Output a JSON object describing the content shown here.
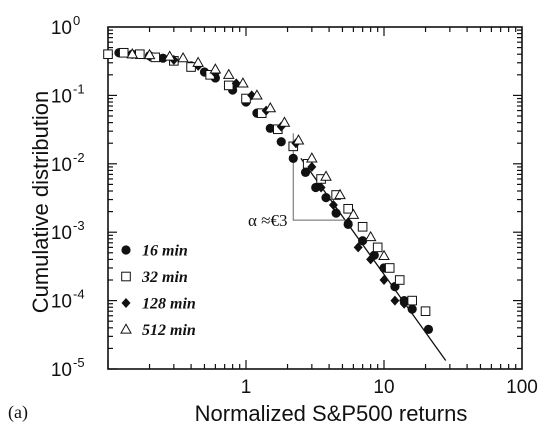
{
  "chart_data": {
    "type": "scatter",
    "xlabel": "Normalized S&P500 returns",
    "ylabel": "Cumulative distribution",
    "xscale": "log",
    "yscale": "log",
    "xlim": [
      0.1,
      100
    ],
    "ylim": [
      1e-05,
      1
    ],
    "x_ticks": [
      {
        "value": 1,
        "label": "1"
      },
      {
        "value": 10,
        "label": "10"
      },
      {
        "value": 100,
        "label": "100"
      }
    ],
    "y_ticks": [
      {
        "value": 1,
        "base": "10",
        "exp": "0"
      },
      {
        "value": 0.1,
        "base": "10",
        "exp": "-1"
      },
      {
        "value": 0.01,
        "base": "10",
        "exp": "-2"
      },
      {
        "value": 0.001,
        "base": "10",
        "exp": "-3"
      },
      {
        "value": 0.0001,
        "base": "10",
        "exp": "-4"
      },
      {
        "value": 1e-05,
        "base": "10",
        "exp": "-5"
      }
    ],
    "grid": false,
    "legend_position": "lower-left",
    "series": [
      {
        "name": "16 min",
        "marker": "filled-circle",
        "x": [
          0.12,
          0.15,
          0.2,
          0.25,
          0.3,
          0.4,
          0.5,
          0.6,
          0.8,
          1.0,
          1.2,
          1.5,
          1.8,
          2.2,
          2.7,
          3.2,
          3.8,
          4.5,
          5.5,
          7,
          8.5,
          10,
          12,
          14,
          16,
          21
        ],
        "y": [
          0.42,
          0.4,
          0.38,
          0.35,
          0.32,
          0.27,
          0.22,
          0.18,
          0.12,
          0.08,
          0.055,
          0.033,
          0.021,
          0.012,
          0.0075,
          0.0045,
          0.0032,
          0.0019,
          0.0013,
          0.00075,
          0.00046,
          0.0003,
          0.00016,
          0.0001,
          7.5e-05,
          3.8e-05
        ]
      },
      {
        "name": "32 min",
        "marker": "open-square",
        "x": [
          0.1,
          0.13,
          0.17,
          0.22,
          0.3,
          0.4,
          0.55,
          0.75,
          1.0,
          1.3,
          1.7,
          2.2,
          2.8,
          3.5,
          4.5,
          5.5,
          7,
          9,
          11,
          13,
          16,
          20
        ],
        "y": [
          0.4,
          0.42,
          0.4,
          0.36,
          0.32,
          0.26,
          0.2,
          0.14,
          0.09,
          0.055,
          0.032,
          0.018,
          0.01,
          0.006,
          0.0035,
          0.0022,
          0.0012,
          0.0006,
          0.0003,
          0.0002,
          0.0001,
          7e-05
        ]
      },
      {
        "name": "128 min",
        "marker": "filled-diamond",
        "x": [
          0.2,
          0.3,
          0.45,
          0.6,
          0.85,
          1.1,
          1.4,
          1.8,
          2.3,
          3.0,
          3.5,
          4.3,
          5.5,
          6.5,
          8,
          10,
          12,
          14
        ],
        "y": [
          0.37,
          0.33,
          0.27,
          0.21,
          0.15,
          0.1,
          0.06,
          0.035,
          0.02,
          0.009,
          0.0045,
          0.0025,
          0.0014,
          0.0006,
          0.0004,
          0.0002,
          0.0001,
          9e-05
        ]
      },
      {
        "name": "512 min",
        "marker": "open-triangle",
        "x": [
          0.15,
          0.2,
          0.28,
          0.35,
          0.45,
          0.6,
          0.75,
          0.95,
          1.2,
          1.5,
          1.9,
          2.4,
          3.0,
          3.8,
          4.8,
          6,
          8,
          10
        ],
        "y": [
          0.4,
          0.39,
          0.37,
          0.35,
          0.3,
          0.24,
          0.2,
          0.15,
          0.1,
          0.065,
          0.04,
          0.022,
          0.012,
          0.0065,
          0.0035,
          0.0018,
          0.00085,
          0.00045
        ]
      }
    ],
    "fit_line": {
      "x": [
        2.5,
        28
      ],
      "y": [
        0.012,
        1.33e-05
      ]
    },
    "slope_triangle": {
      "x_left": 2.2,
      "x_right": 5.5,
      "y_top": 0.028,
      "y_bottom": 0.0015
    },
    "annotation": "α ≈€3",
    "panel_label": "(a)"
  }
}
